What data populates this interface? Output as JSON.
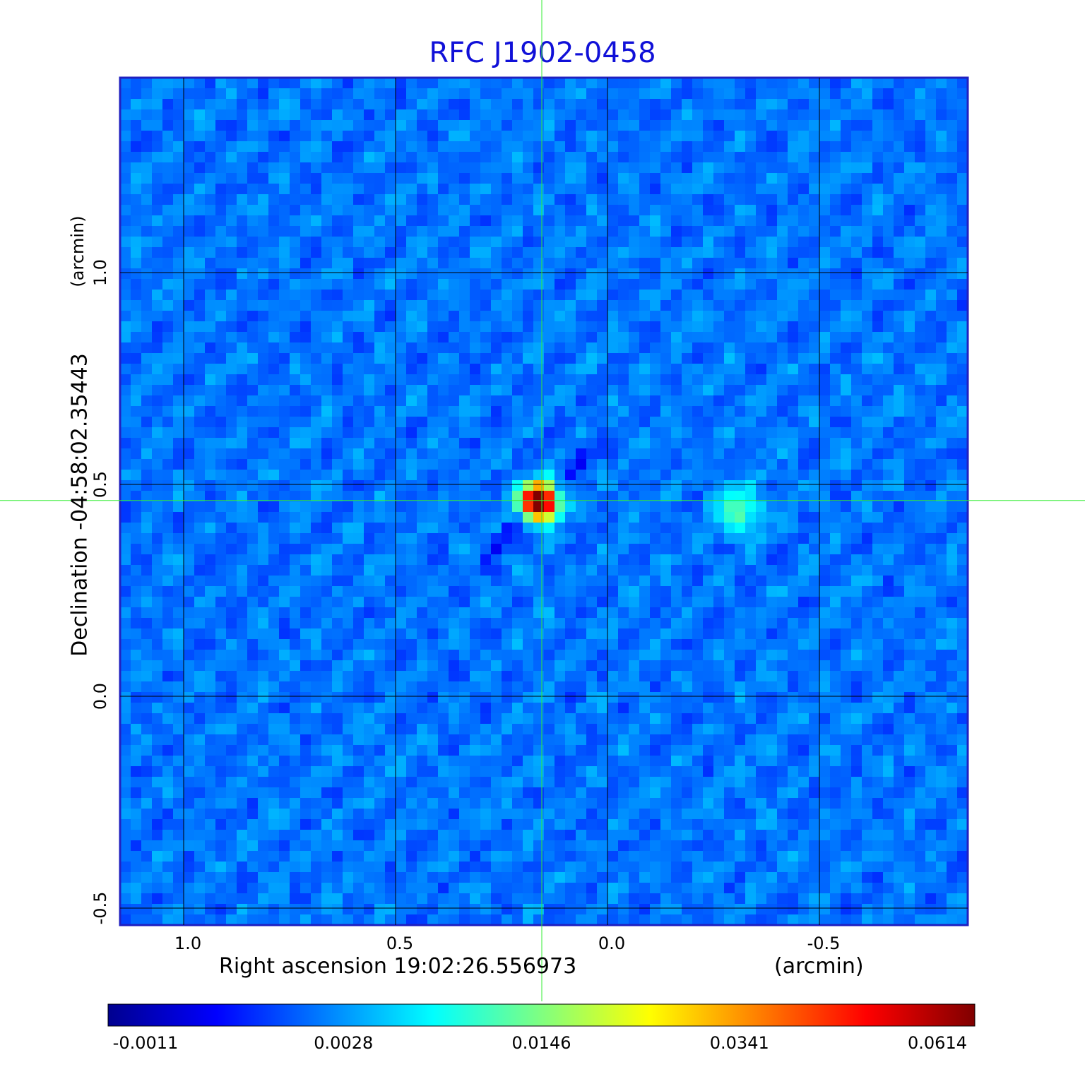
{
  "title": "RFC J1902-0458",
  "chart_data": {
    "type": "heatmap",
    "title": "RFC J1902-0458",
    "xlabel": "Right ascension  19:02:26.556973",
    "xunit": "(arcmin)",
    "ylabel": "Declination  -04:58:02.35443",
    "yunit": "(arcmin)",
    "x_ticks": [
      "1.0",
      "0.5",
      "0.0",
      "-0.5"
    ],
    "y_ticks": [
      "1.0",
      "0.5",
      "0.0",
      "-0.5"
    ],
    "xlim": [
      1.15,
      -0.85
    ],
    "ylim": [
      -0.54,
      1.46
    ],
    "grid": true,
    "colormap": "jet",
    "colorbar_ticks": [
      "-0.0011",
      "0.0028",
      "0.0146",
      "0.0341",
      "0.0614"
    ],
    "colorbar_range": [
      -0.0011,
      0.0614
    ],
    "sources": [
      {
        "x": 0.16,
        "y": 0.46,
        "peak": 0.0614
      },
      {
        "x": -0.31,
        "y": 0.44,
        "peak": 0.009
      }
    ],
    "crosshair": {
      "x": 0.155,
      "y": 0.462
    },
    "colors": {
      "title": "#1010d8",
      "crosshair": "#33ee33",
      "grid": "#000000"
    }
  }
}
